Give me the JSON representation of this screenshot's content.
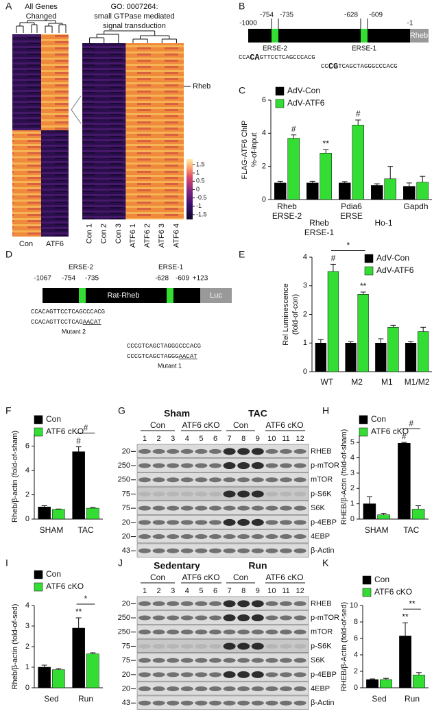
{
  "panel_labels": [
    "A",
    "B",
    "C",
    "D",
    "E",
    "F",
    "G",
    "H",
    "I",
    "J",
    "K"
  ],
  "heatmap": {
    "left_title": [
      "All Genes",
      "Changed"
    ],
    "left_columns": [
      "Con",
      "ATF6"
    ],
    "right_title": [
      "GO: 0007264:",
      "small GTPase mediated",
      "signal transduction"
    ],
    "gene_label": "Rheb",
    "columns": [
      "Con 1",
      "Con 2",
      "Con 3",
      "ATF6 1",
      "ATF6 2",
      "ATF6 3",
      "ATF6 4"
    ],
    "colorbar_ticks": [
      1.5,
      1,
      0.5,
      0,
      -0.5,
      -1,
      -1.5
    ]
  },
  "promoter_b": {
    "positions": [
      "-1000",
      "-754",
      "-735",
      "-628",
      "-609",
      "-1"
    ],
    "gene": "Rheb",
    "elements": [
      "ERSE-2",
      "ERSE-1"
    ],
    "sequences": [
      [
        "CCA",
        "CA",
        "GTTCCTCAGCCCACG"
      ],
      [
        "CC",
        "CG",
        "TCAGCTAGGGCCCACG"
      ]
    ]
  },
  "promoter_d": {
    "positions": [
      "-1067",
      "-754",
      "-735",
      "-628",
      "-609",
      "+123"
    ],
    "gene": "Rat-Rheb",
    "reporter": "Luc",
    "elements": [
      "ERSE-2",
      "ERSE-1"
    ],
    "sequences": [
      [
        "CCACAGTTCCTCAGCCCACG"
      ],
      [
        "CCACAGTTCCTCAG",
        "AACAT"
      ],
      [
        "CCCGTCAGCTAGGGCCCACG"
      ],
      [
        "CCCGTCAGCTAGGG",
        "AACAT"
      ]
    ],
    "mutants": [
      "Mutant 2",
      "Mutant 1"
    ]
  },
  "blots": [
    {
      "groups": [
        "Sham",
        "TAC"
      ],
      "subgroups": [
        "Con",
        "ATF6 cKO",
        "Con",
        "ATF6 cKO"
      ],
      "lanes": [
        1,
        2,
        3,
        4,
        5,
        6,
        7,
        8,
        9,
        10,
        11,
        12
      ],
      "rows": [
        "RHEB",
        "p-mTOR",
        "mTOR",
        "p-S6K",
        "S6K",
        "p-4EBP",
        "4EBP",
        "β-Actin"
      ],
      "markers": [
        20,
        250,
        250,
        75,
        75,
        20,
        20,
        43
      ]
    },
    {
      "groups": [
        "Sedentary",
        "Run"
      ],
      "subgroups": [
        "Con",
        "ATF6 cKO",
        "Con",
        "ATF6 cKO"
      ],
      "lanes": [
        1,
        2,
        3,
        4,
        5,
        6,
        7,
        8,
        9,
        10,
        11,
        12
      ],
      "rows": [
        "RHEB",
        "p-mTOR",
        "mTOR",
        "p-S6K",
        "S6K",
        "p-4EBP",
        "4EBP",
        "β-Actin"
      ],
      "markers": [
        20,
        250,
        250,
        75,
        75,
        20,
        20,
        43
      ]
    }
  ],
  "chart_data": [
    {
      "type": "bar",
      "ylabel": [
        "FLAG-ATF6 ChIP",
        "%-of-input"
      ],
      "categories": [
        [
          "Rheb",
          "ERSE-2"
        ],
        [
          "Rheb",
          "ERSE-1"
        ],
        [
          "Pdia6",
          "ERSE"
        ],
        [
          "Ho-1"
        ],
        [
          "Gapdh"
        ]
      ],
      "series": [
        {
          "name": "AdV-Con",
          "color": "#000000",
          "values": [
            1.0,
            1.0,
            1.0,
            0.85,
            0.8
          ],
          "errors": [
            0.1,
            0.1,
            0.08,
            0.1,
            0.2
          ],
          "sig": [
            null,
            null,
            null,
            null,
            null
          ]
        },
        {
          "name": "AdV-ATF6",
          "color": "#33dd33",
          "values": [
            3.7,
            2.8,
            4.5,
            1.25,
            1.05
          ],
          "errors": [
            0.2,
            0.2,
            0.3,
            0.75,
            0.35
          ],
          "sig": [
            "#",
            "**",
            "#",
            null,
            null
          ]
        }
      ],
      "ylim": [
        0,
        6
      ],
      "yticks": [
        0,
        2,
        4,
        6
      ],
      "comparisons": []
    },
    {
      "type": "bar",
      "ylabel": [
        "Rel Luminescence",
        "(fold-of-con)"
      ],
      "categories": [
        [
          "WT"
        ],
        [
          "M2"
        ],
        [
          "M1"
        ],
        [
          "M1/M2"
        ]
      ],
      "series": [
        {
          "name": "AdV-Con",
          "color": "#000000",
          "values": [
            1.0,
            1.0,
            1.0,
            1.0
          ],
          "errors": [
            0.12,
            0.05,
            0.15,
            0.05
          ],
          "sig": [
            null,
            null,
            null,
            null
          ]
        },
        {
          "name": "AdV-ATF6",
          "color": "#33dd33",
          "values": [
            3.5,
            2.7,
            1.55,
            1.4
          ],
          "errors": [
            0.25,
            0.08,
            0.07,
            0.15
          ],
          "sig": [
            "#",
            "**",
            null,
            null
          ]
        }
      ],
      "ylim": [
        0,
        4
      ],
      "yticks": [
        0,
        1,
        2,
        3,
        4
      ],
      "comparisons": [
        {
          "label": "*",
          "between": [
            [
              1,
              0
            ],
            [
              1,
              1
            ]
          ]
        }
      ]
    },
    {
      "type": "bar",
      "ylabel": [
        "Rheb/β-actin (fold-of-sham)"
      ],
      "categories": [
        [
          "SHAM"
        ],
        [
          "TAC"
        ]
      ],
      "series": [
        {
          "name": "Con",
          "color": "#000000",
          "values": [
            1.0,
            5.55
          ],
          "errors": [
            0.1,
            0.4
          ],
          "sig": [
            null,
            "#"
          ]
        },
        {
          "name": "ATF6 cKO",
          "color": "#33dd33",
          "values": [
            0.8,
            0.9
          ],
          "errors": [
            0.03,
            0.06
          ],
          "sig": [
            null,
            null
          ]
        }
      ],
      "ylim": [
        0,
        7
      ],
      "yticks": [
        0,
        2,
        4,
        6
      ],
      "comparisons": [
        {
          "label": "#",
          "between": [
            [
              0,
              1
            ],
            [
              1,
              1
            ]
          ]
        }
      ]
    },
    {
      "type": "bar",
      "ylabel": [
        "RHEB/β-Actin (fold-of-sham)"
      ],
      "categories": [
        [
          "SHAM"
        ],
        [
          "TAC"
        ]
      ],
      "series": [
        {
          "name": "Con",
          "color": "#000000",
          "values": [
            1.0,
            4.95
          ],
          "errors": [
            0.45,
            0.05
          ],
          "sig": [
            null,
            "#"
          ]
        },
        {
          "name": "ATF6 cKO",
          "color": "#33dd33",
          "values": [
            0.28,
            0.65
          ],
          "errors": [
            0.1,
            0.22
          ],
          "sig": [
            null,
            null
          ]
        }
      ],
      "ylim": [
        0,
        5.5
      ],
      "yticks": [
        0,
        1,
        2,
        3,
        4,
        5
      ],
      "comparisons": [
        {
          "label": "#",
          "between": [
            [
              0,
              1
            ],
            [
              1,
              1
            ]
          ]
        }
      ]
    },
    {
      "type": "bar",
      "ylabel": [
        "Rheb/β-actin (fold-of-sed)"
      ],
      "categories": [
        [
          "Sed"
        ],
        [
          "Run"
        ]
      ],
      "series": [
        {
          "name": "Con",
          "color": "#000000",
          "values": [
            1.0,
            2.9
          ],
          "errors": [
            0.1,
            0.5
          ],
          "sig": [
            null,
            "**"
          ]
        },
        {
          "name": "ATF6 cKO",
          "color": "#33dd33",
          "values": [
            0.88,
            1.65
          ],
          "errors": [
            0.05,
            0.05
          ],
          "sig": [
            null,
            null
          ]
        }
      ],
      "ylim": [
        0,
        4
      ],
      "yticks": [
        0,
        1,
        2,
        3,
        4
      ],
      "comparisons": [
        {
          "label": "*",
          "between": [
            [
              0,
              1
            ],
            [
              1,
              1
            ]
          ]
        }
      ]
    },
    {
      "type": "bar",
      "ylabel": [
        "RHEB/β-Actin (fold-of-sed)"
      ],
      "categories": [
        [
          "Sed"
        ],
        [
          "Run"
        ]
      ],
      "series": [
        {
          "name": "Con",
          "color": "#000000",
          "values": [
            1.0,
            6.3
          ],
          "errors": [
            0.08,
            1.6
          ],
          "sig": [
            null,
            "**"
          ]
        },
        {
          "name": "ATF6 cKO",
          "color": "#33dd33",
          "values": [
            1.0,
            1.55
          ],
          "errors": [
            0.15,
            0.3
          ],
          "sig": [
            null,
            null
          ]
        }
      ],
      "ylim": [
        0,
        10
      ],
      "yticks": [
        0,
        2,
        4,
        6,
        8,
        10
      ],
      "comparisons": [
        {
          "label": "**",
          "between": [
            [
              0,
              1
            ],
            [
              1,
              1
            ]
          ]
        }
      ]
    }
  ]
}
